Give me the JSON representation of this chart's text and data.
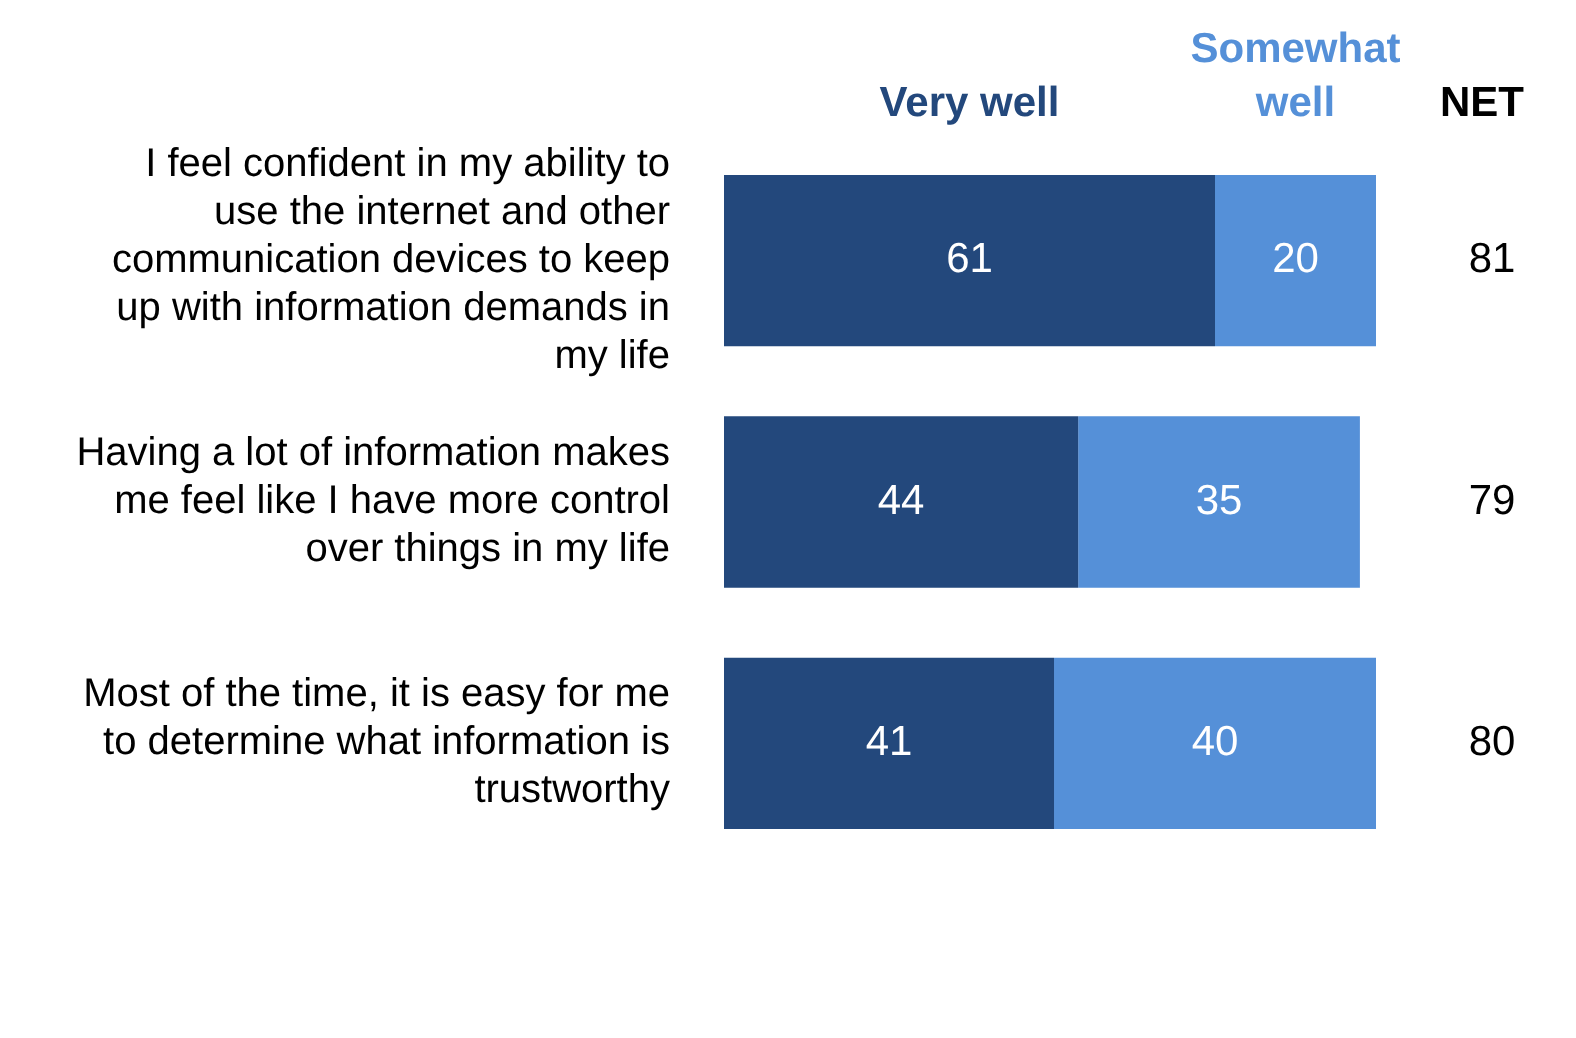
{
  "chart_data": {
    "type": "bar",
    "orientation": "horizontal",
    "stacked": true,
    "data_labels": true,
    "legend": "top",
    "categories": [
      "I feel confident in my ability to use the internet and other communication devices to keep up with information demands in my life",
      "Having a lot of information makes me feel like I have more control over things in my life",
      "Most of the time, it is easy for me to determine what information is trustworthy"
    ],
    "series": [
      {
        "name": "Very well",
        "color": "#23487c",
        "values": [
          61,
          44,
          41
        ]
      },
      {
        "name": "Somewhat well",
        "color": "#5590d8",
        "values": [
          20,
          35,
          40
        ]
      }
    ],
    "totals": [
      "81",
      "79",
      "80"
    ],
    "annotations": [
      "NET"
    ]
  }
}
